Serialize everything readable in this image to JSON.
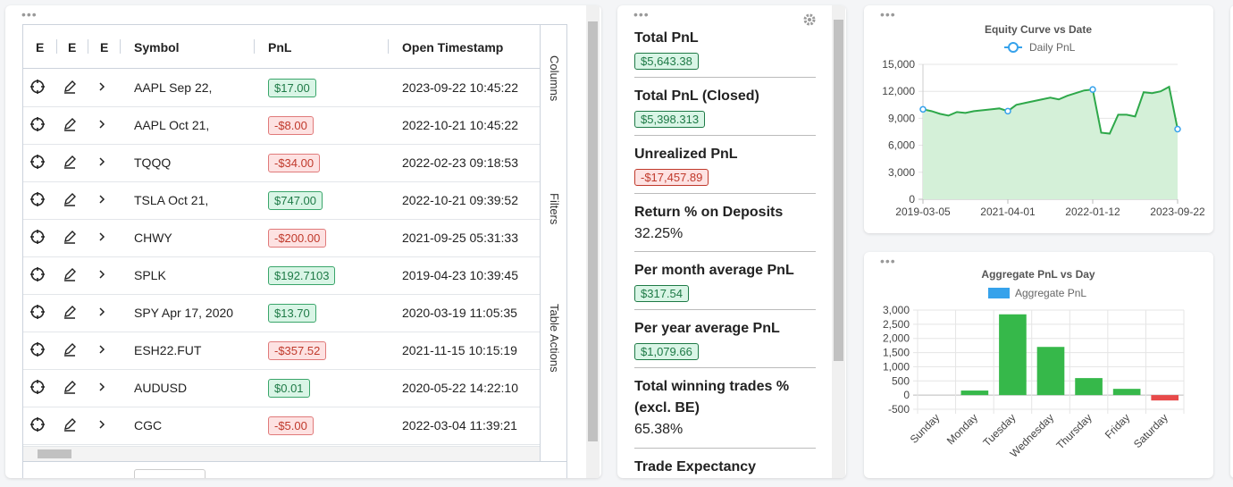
{
  "table": {
    "headers": [
      "E",
      "E",
      "E",
      "Symbol",
      "PnL",
      "Open Timestamp"
    ],
    "rows": [
      [
        "AAPL Sep 22,",
        "$17.00",
        "2023-09-22 10:45:22"
      ],
      [
        "AAPL Oct 21,",
        "-$8.00",
        "2022-10-21 10:45:22"
      ],
      [
        "TQQQ",
        "-$34.00",
        "2022-02-23 09:18:53"
      ],
      [
        "TSLA Oct 21,",
        "$747.00",
        "2022-10-21 09:39:52"
      ],
      [
        "CHWY",
        "-$200.00",
        "2021-09-25 05:31:33"
      ],
      [
        "SPLK",
        "$192.7103",
        "2019-04-23 10:39:45"
      ],
      [
        "SPY Apr 17, 2020",
        "$13.70",
        "2020-03-19 11:05:35"
      ],
      [
        "ESH22.FUT",
        "-$357.52",
        "2021-11-15 10:15:19"
      ],
      [
        "AUDUSD",
        "$0.01",
        "2020-05-22 14:22:10"
      ],
      [
        "CGC",
        "-$5.00",
        "2022-03-04 11:39:21"
      ]
    ],
    "side_tabs": [
      "Columns",
      "Filters",
      "Table Actions"
    ]
  },
  "stats": [
    {
      "label": "Total PnL",
      "value": "$5,643.38",
      "variant": "green"
    },
    {
      "label": "Total PnL (Closed)",
      "value": "$5,398.313",
      "variant": "green"
    },
    {
      "label": "Unrealized PnL",
      "value": "-$17,457.89",
      "variant": "red"
    },
    {
      "label": "Return % on Deposits",
      "value": "32.25%",
      "variant": "text"
    },
    {
      "label": "Per month average PnL",
      "value": "$317.54",
      "variant": "green"
    },
    {
      "label": "Per year average PnL",
      "value": "$1,079.66",
      "variant": "green"
    },
    {
      "label": "Total winning trades % (excl. BE)",
      "value": "65.38%",
      "variant": "text"
    },
    {
      "label": "Trade Expectancy",
      "variant": "text"
    }
  ],
  "chart_data": [
    {
      "type": "line",
      "title": "Equity Curve vs Date",
      "area": true,
      "grid": true,
      "x": [
        "2019-03-05",
        null,
        null,
        null,
        null,
        null,
        null,
        null,
        null,
        null,
        "2021-04-01",
        null,
        null,
        null,
        null,
        null,
        null,
        null,
        null,
        null,
        "2022-01-12",
        null,
        null,
        null,
        null,
        null,
        null,
        null,
        null,
        null,
        "2023-09-22"
      ],
      "series": [
        {
          "name": "Daily PnL",
          "color": "#2ea84a",
          "fill": "#d4f0d8",
          "marker_color": "#36a2eb",
          "values": [
            10000,
            9800,
            9500,
            9300,
            9700,
            9600,
            9800,
            9900,
            10000,
            10100,
            9800,
            10500,
            10700,
            10900,
            11100,
            11300,
            11100,
            11500,
            11800,
            12100,
            12200,
            7400,
            7300,
            9400,
            9400,
            9200,
            11900,
            11800,
            12000,
            12500,
            7800
          ]
        }
      ],
      "ylim": [
        0,
        15000
      ],
      "yticks": [
        0,
        {
          "value": 3000,
          "label": "3,000"
        },
        {
          "value": 6000,
          "label": "6,000"
        },
        {
          "value": 9000,
          "label": "9,000"
        },
        {
          "value": 12000,
          "label": "12,000"
        },
        {
          "value": 15000,
          "label": "15,000"
        }
      ]
    },
    {
      "type": "bar",
      "title": "Aggregate PnL vs Day",
      "grid": true,
      "categories": [
        "Sunday",
        "Monday",
        "Tuesday",
        "Wednesday",
        "Thursday",
        "Friday",
        "Saturday"
      ],
      "series": [
        {
          "name": "Aggregate PnL",
          "color": "#36a2eb",
          "values": [
            0,
            160,
            2850,
            1700,
            600,
            220,
            -190
          ],
          "bar_colors": [
            "#36b84a",
            "#36b84a",
            "#36b84a",
            "#36b84a",
            "#36b84a",
            "#36b84a",
            "#e84a4a"
          ]
        }
      ],
      "ylim": [
        -500,
        3000
      ],
      "yticks": [
        -500,
        0,
        500,
        {
          "value": 1000,
          "label": "1,000"
        },
        {
          "value": 1500,
          "label": "1,500"
        },
        {
          "value": 2000,
          "label": "2,000"
        },
        {
          "value": 2500,
          "label": "2,500"
        },
        {
          "value": 3000,
          "label": "3,000"
        }
      ]
    }
  ]
}
